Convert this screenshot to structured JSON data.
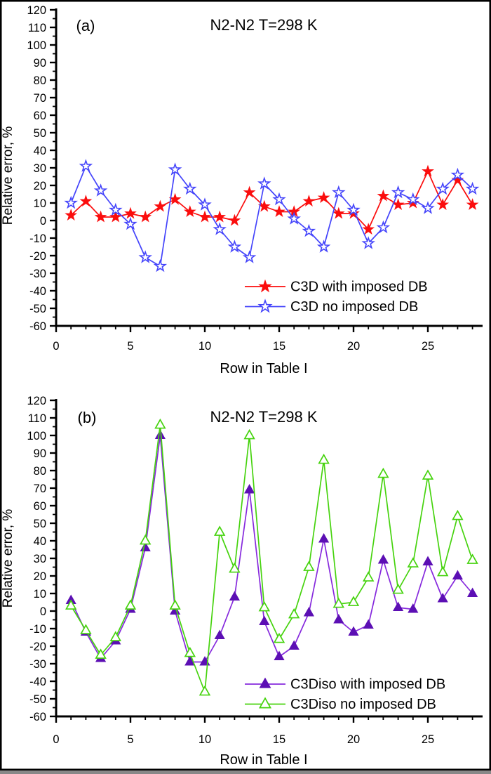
{
  "figure": {
    "background": "#ffffff",
    "frame_color": "#000000"
  },
  "chart_data": [
    {
      "type": "line",
      "panel_label": "(a)",
      "title": "N2-N2 T=298 K",
      "xlabel": "Row in Table I",
      "ylabel": "Relative error, %",
      "xlim": [
        0,
        28.5
      ],
      "ylim": [
        -60,
        120
      ],
      "x_major_ticks": [
        0,
        5,
        10,
        15,
        20,
        25
      ],
      "x_minor_step": 1,
      "y_major_step": 10,
      "y_minor_step": 5,
      "grid": false,
      "legend_position": "inside-lower-right",
      "x": [
        1,
        2,
        3,
        4,
        5,
        6,
        7,
        8,
        9,
        10,
        11,
        12,
        13,
        14,
        15,
        16,
        17,
        18,
        19,
        20,
        21,
        22,
        23,
        24,
        25,
        26,
        27,
        28
      ],
      "series": [
        {
          "name": "C3D with imposed DB",
          "marker": "star-filled",
          "line_color": "#fb0d0d",
          "marker_color": "#fb0d0d",
          "values": [
            3,
            11,
            2,
            2,
            4,
            2,
            8,
            12,
            5,
            2,
            2,
            0,
            16,
            8,
            5,
            5,
            11,
            13,
            4,
            4,
            -5,
            14,
            9,
            10,
            28,
            9,
            23,
            9
          ]
        },
        {
          "name": "C3D no imposed DB",
          "marker": "star-open",
          "line_color": "#4444fb",
          "marker_color": "#4444fb",
          "values": [
            10,
            31,
            17,
            6,
            -2,
            -21,
            -26,
            29,
            18,
            9,
            -5,
            -15,
            -21,
            21,
            12,
            1,
            -6,
            -15,
            16,
            6,
            -13,
            -4,
            16,
            12,
            7,
            18,
            26,
            18
          ]
        }
      ]
    },
    {
      "type": "line",
      "panel_label": "(b)",
      "title": "N2-N2 T=298 K",
      "xlabel": "Row in Table I",
      "ylabel": "Relative error, %",
      "xlim": [
        0,
        28.5
      ],
      "ylim": [
        -60,
        120
      ],
      "x_major_ticks": [
        0,
        5,
        10,
        15,
        20,
        25
      ],
      "x_minor_step": 1,
      "y_major_step": 10,
      "y_minor_step": 5,
      "grid": false,
      "legend_position": "inside-lower-right",
      "x": [
        1,
        2,
        3,
        4,
        5,
        6,
        7,
        8,
        9,
        10,
        11,
        12,
        13,
        14,
        15,
        16,
        17,
        18,
        19,
        20,
        21,
        22,
        23,
        24,
        25,
        26,
        27,
        28
      ],
      "series": [
        {
          "name": "C3Diso with imposed DB",
          "marker": "triangle-filled",
          "line_color": "#8629dd",
          "marker_color": "#5c0fb4",
          "values": [
            6,
            -12,
            -27,
            -17,
            1,
            36,
            100,
            0,
            -29,
            -29,
            -14,
            8,
            69,
            -6,
            -26,
            -20,
            -1,
            41,
            -5,
            -12,
            -8,
            29,
            2,
            1,
            28,
            7,
            20,
            10
          ]
        },
        {
          "name": "C3Diso no imposed DB",
          "marker": "triangle-open",
          "line_color": "#46d30e",
          "marker_color": "#46d30e",
          "values": [
            3,
            -11,
            -25,
            -15,
            3,
            40,
            106,
            3,
            -24,
            -46,
            45,
            24,
            100,
            2,
            -16,
            -2,
            25,
            86,
            4,
            5,
            19,
            78,
            12,
            27,
            77,
            22,
            54,
            29
          ]
        }
      ]
    }
  ]
}
